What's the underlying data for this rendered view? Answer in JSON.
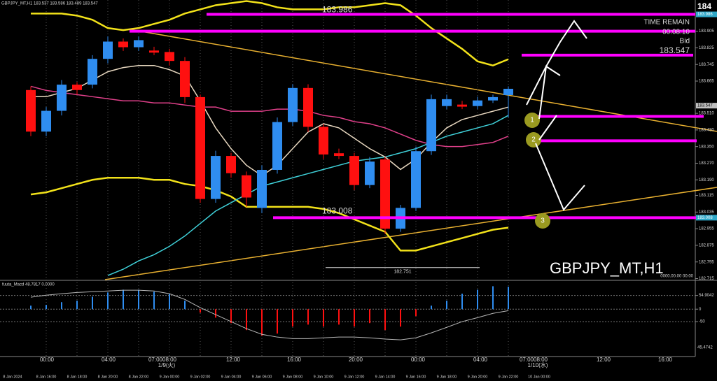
{
  "chart_data": [
    {
      "type": "candlestick",
      "title": "GBPJPY_MT,H1 183.537 183.586 183.489 183.547",
      "watermark": "GBPJPY_MT,H1",
      "corner_label": "184",
      "timestamp": "0000.00.00 00:00",
      "categories": [
        null,
        "8 Jan 16:00",
        null,
        "8 Jan 18:00",
        null,
        "8 Jan 20:00",
        null,
        "8 Jan 22:00",
        null,
        "9 Jan 00:00",
        null,
        "9 Jan 02:00",
        null,
        "9 Jan 04:00",
        null,
        "9 Jan 06:00",
        null,
        "9 Jan 08:00",
        null,
        "9 Jan 10:00",
        null,
        "9 Jan 12:00",
        null,
        "9 Jan 14:00",
        null,
        "9 Jan 16:00",
        null,
        "9 Jan 18:00",
        null,
        "9 Jan 20:00",
        null,
        "9 Jan 22:00"
      ],
      "x_labels_extra": [
        "8 Jan 2024",
        "10 Jan 00:00"
      ],
      "x_labels_top": [
        "00:00",
        "04:00",
        "07:0008:00",
        "12:00",
        "16:00",
        "20:00",
        "00:00",
        "04:00",
        "07:0008:00",
        "12:00",
        "16:00"
      ],
      "x_dates": [
        "1/9(火)",
        "1/10(水)"
      ],
      "open": [
        183.622,
        183.422,
        183.522,
        183.648,
        183.648,
        183.772,
        183.855,
        183.828,
        183.812,
        183.805,
        183.762,
        183.588,
        183.098,
        183.305,
        183.212,
        183.055,
        183.238,
        183.468,
        183.632,
        183.445,
        183.318,
        183.305,
        183.165,
        183.288,
        182.955,
        183.055,
        183.328,
        183.545,
        183.552,
        183.545,
        183.572,
        183.598
      ],
      "high": [
        183.64,
        183.54,
        183.67,
        183.66,
        183.79,
        183.88,
        183.87,
        183.88,
        183.83,
        183.82,
        183.78,
        183.6,
        183.33,
        183.32,
        183.23,
        183.26,
        183.49,
        183.65,
        183.65,
        183.46,
        183.34,
        183.32,
        183.3,
        183.3,
        183.07,
        183.35,
        183.6,
        183.6,
        183.57,
        183.59,
        183.6,
        183.64
      ],
      "low": [
        183.4,
        183.4,
        183.5,
        183.6,
        183.63,
        183.75,
        183.81,
        183.81,
        183.79,
        183.74,
        183.56,
        183.08,
        183.08,
        183.2,
        183.06,
        183.03,
        183.22,
        183.45,
        183.42,
        183.29,
        183.29,
        183.14,
        183.15,
        182.93,
        182.94,
        183.04,
        183.31,
        183.53,
        183.53,
        183.53,
        183.56,
        183.49
      ],
      "close": [
        183.422,
        183.522,
        183.648,
        183.622,
        183.772,
        183.855,
        183.828,
        183.862,
        183.802,
        183.762,
        183.588,
        183.098,
        183.305,
        183.222,
        183.105,
        183.238,
        183.468,
        183.632,
        183.445,
        183.312,
        183.305,
        183.165,
        183.278,
        182.955,
        183.055,
        183.328,
        183.578,
        183.578,
        183.542,
        183.572,
        183.588,
        183.628
      ],
      "up_color": "#2f8df0",
      "down_color": "#ff1010",
      "ylim": [
        182.71,
        184.045
      ],
      "yticks": [
        183.905,
        183.825,
        183.745,
        183.665,
        {
          "value": 183.51,
          "label": "183.510"
        },
        {
          "value": 183.43,
          "label": "183.430"
        },
        {
          "value": 183.35,
          "label": "183.350"
        },
        {
          "value": 183.27,
          "label": "183.270"
        },
        {
          "value": 183.19,
          "label": "183.190"
        },
        183.115,
        183.035,
        182.955,
        182.875,
        182.795,
        182.715
      ],
      "series": [
        {
          "color": "#f2e21a",
          "values": [
            183.99,
            183.99,
            183.99,
            183.98,
            183.96,
            183.92,
            183.91,
            183.92,
            183.94,
            183.96,
            183.99,
            184.01,
            184.03,
            184.04,
            184.05,
            184.04,
            184.02,
            184.01,
            184.01,
            184.01,
            184.02,
            184.02,
            184.03,
            184.04,
            184.03,
            183.98,
            183.92,
            183.87,
            183.82,
            183.76,
            183.74,
            183.77
          ]
        },
        {
          "color": "#f2e21a",
          "values": [
            183.12,
            183.13,
            183.15,
            183.17,
            183.19,
            183.2,
            183.2,
            183.2,
            183.19,
            183.19,
            183.17,
            183.16,
            183.14,
            183.11,
            183.06,
            183.06,
            183.06,
            183.06,
            183.06,
            183.05,
            183.03,
            183.0,
            182.97,
            182.94,
            182.85,
            182.85,
            182.87,
            182.89,
            182.91,
            182.93,
            182.95,
            182.96
          ]
        },
        {
          "color": "#3fd0d8",
          "values": [
            null,
            null,
            null,
            null,
            null,
            182.73,
            182.76,
            182.8,
            182.83,
            182.87,
            182.92,
            182.98,
            183.04,
            183.08,
            183.12,
            183.16,
            183.18,
            183.2,
            183.22,
            183.24,
            183.26,
            183.28,
            183.29,
            183.3,
            183.32,
            183.34,
            183.37,
            183.4,
            183.42,
            183.44,
            183.46,
            183.5
          ]
        },
        {
          "color": "#e0408a",
          "values": [
            183.64,
            183.62,
            183.61,
            183.6,
            183.59,
            183.58,
            183.57,
            183.57,
            183.56,
            183.56,
            183.55,
            183.54,
            183.54,
            183.52,
            183.52,
            183.52,
            183.53,
            183.53,
            183.52,
            183.5,
            183.49,
            183.47,
            183.46,
            183.44,
            183.41,
            183.38,
            183.36,
            183.35,
            183.35,
            183.36,
            183.37,
            183.4
          ]
        },
        {
          "color": "#e8d8c0",
          "values": [
            183.59,
            183.59,
            183.61,
            183.63,
            183.67,
            183.71,
            183.73,
            183.74,
            183.74,
            183.72,
            183.69,
            183.57,
            183.44,
            183.34,
            183.26,
            183.21,
            183.26,
            183.34,
            183.42,
            183.46,
            183.44,
            183.39,
            183.34,
            183.3,
            183.24,
            183.29,
            183.37,
            183.44,
            183.48,
            183.5,
            183.52,
            183.54
          ]
        }
      ],
      "levels": {
        "color": "#ff00ff",
        "values": [
          183.986,
          183.905,
          183.79,
          183.495,
          183.378,
          183.008
        ]
      },
      "price_tags": [
        183.986,
        183.547,
        183.008
      ],
      "low_marker": 182.751,
      "points": [
        "1",
        "2",
        "3"
      ],
      "timer": {
        "label": "TIME REMAIN",
        "time": "00:08:10",
        "bid_label": "Bid",
        "bid": 183.547
      }
    },
    {
      "type": "macd_histogram",
      "title": "fuuta_Macd 48.7817 0.0000",
      "values": [
        14,
        17,
        28,
        34,
        50,
        67,
        78,
        78,
        70,
        62,
        34,
        -14,
        -34,
        -56,
        -84,
        -106,
        -98,
        -70,
        -62,
        -70,
        -62,
        -70,
        -56,
        -84,
        -70,
        -28,
        14,
        34,
        62,
        78,
        92,
        90
      ],
      "up_color": "#2f8df0",
      "down_color": "#ff1010",
      "signal": {
        "color": "#b8b8b8",
        "values": [
          48,
          56,
          62,
          67,
          70,
          73,
          76,
          76,
          73,
          62,
          39,
          6,
          -22,
          -50,
          -78,
          -101,
          -112,
          -118,
          -118,
          -115,
          -112,
          -112,
          -115,
          -120,
          -123,
          -115,
          -95,
          -73,
          -50,
          -34,
          -17,
          -6
        ]
      },
      "ylim": [
        -190,
        110
      ],
      "yticks": [
        54.9042,
        0,
        -50
      ],
      "min_label": "45.4742"
    }
  ]
}
